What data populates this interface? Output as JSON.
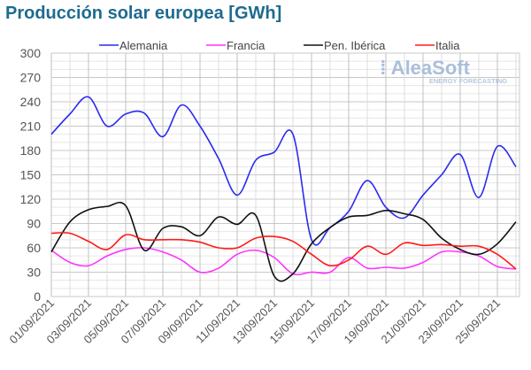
{
  "chart_data": {
    "type": "line",
    "title": "Producción solar europea [GWh]",
    "xlabel": "",
    "ylabel": "",
    "ylim": [
      0,
      300
    ],
    "yticks": [
      "0",
      "30",
      "60",
      "90",
      "120",
      "150",
      "180",
      "210",
      "240",
      "270",
      "300"
    ],
    "x": [
      "01/09",
      "02/09",
      "03/09",
      "04/09",
      "05/09",
      "06/09",
      "07/09",
      "08/09",
      "09/09",
      "10/09",
      "11/09",
      "12/09",
      "13/09",
      "14/09",
      "15/09",
      "16/09",
      "17/09",
      "18/09",
      "19/09",
      "20/09",
      "21/09",
      "22/09",
      "23/09",
      "24/09",
      "25/09",
      "26/09"
    ],
    "xticks": [
      "01/09/2021",
      "03/09/2021",
      "05/09/2021",
      "07/09/2021",
      "09/09/2021",
      "11/09/2021",
      "13/09/2021",
      "15/09/2021",
      "17/09/2021",
      "19/09/2021",
      "21/09/2021",
      "23/09/2021",
      "25/09/2021"
    ],
    "legend_position": "top",
    "grid": true,
    "series": [
      {
        "name": "Alemania",
        "color": "#2a2af0",
        "values": [
          200,
          225,
          246,
          210,
          225,
          226,
          197,
          236,
          210,
          170,
          125,
          168,
          178,
          200,
          70,
          85,
          105,
          143,
          110,
          97,
          125,
          150,
          175,
          122,
          185,
          160
        ]
      },
      {
        "name": "Francia",
        "color": "#ff33ff",
        "values": [
          57,
          42,
          38,
          50,
          58,
          60,
          55,
          45,
          30,
          35,
          52,
          57,
          48,
          28,
          30,
          30,
          48,
          35,
          36,
          35,
          42,
          55,
          55,
          50,
          37,
          34
        ]
      },
      {
        "name": "Pen. Ibérica",
        "color": "#111111",
        "values": [
          55,
          92,
          107,
          111,
          112,
          57,
          84,
          86,
          75,
          98,
          89,
          100,
          25,
          28,
          65,
          85,
          98,
          100,
          106,
          102,
          95,
          72,
          58,
          52,
          65,
          92
        ]
      },
      {
        "name": "Italia",
        "color": "#ff1a1a",
        "values": [
          78,
          78,
          68,
          58,
          76,
          70,
          70,
          70,
          67,
          60,
          60,
          72,
          74,
          68,
          52,
          38,
          45,
          62,
          52,
          66,
          63,
          64,
          62,
          62,
          52,
          34
        ]
      }
    ]
  },
  "watermark": {
    "brand": "AleaSoft",
    "tagline": "ENERGY FORECASTING"
  }
}
